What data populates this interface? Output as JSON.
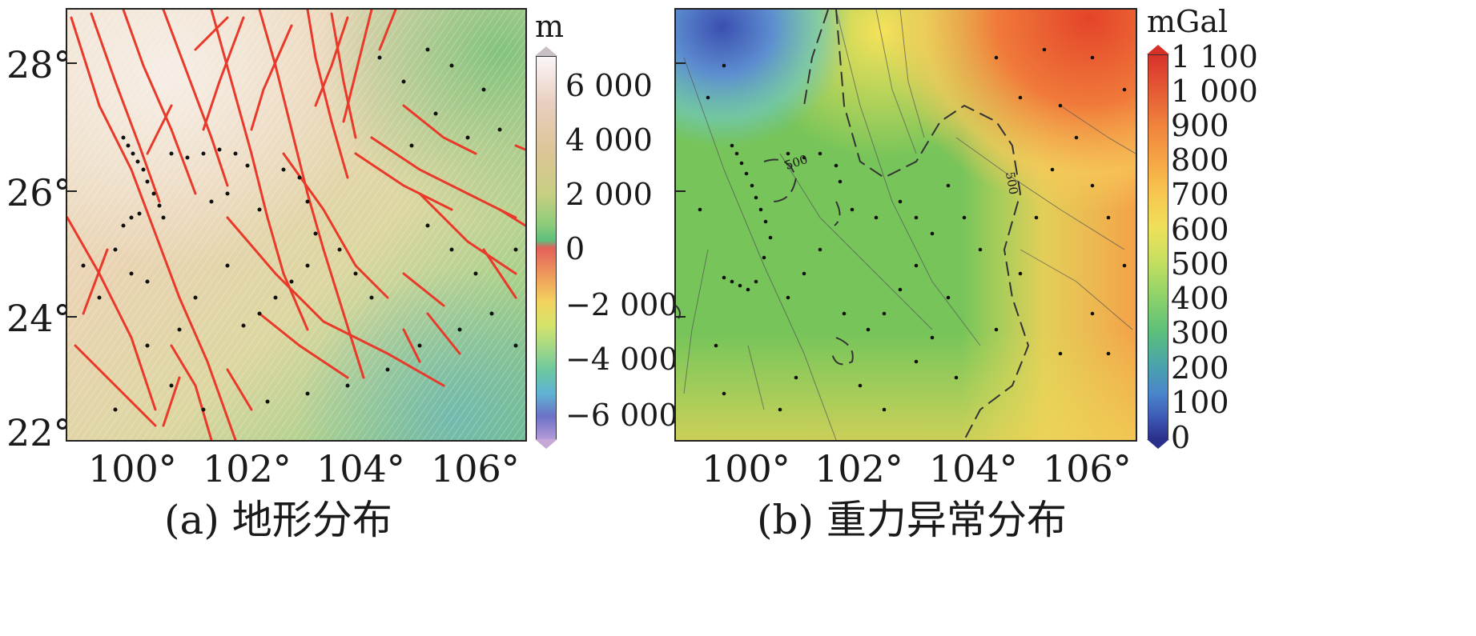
{
  "panel_a": {
    "caption": "(a) 地形分布",
    "y_ticks": [
      "28°",
      "26°",
      "24°",
      "22°"
    ],
    "x_ticks": [
      "100°",
      "102°",
      "104°",
      "106°"
    ],
    "colorbar": {
      "unit": "m",
      "labels": [
        "6 000",
        "4 000",
        "2 000",
        "0",
        "−2 000",
        "−4 000",
        "−6 000"
      ],
      "colors": [
        "#f4eef0",
        "#e6c8a8",
        "#c9c87a",
        "#7cc37a",
        "#e06a5a",
        "#f0b860",
        "#cce06a",
        "#7ccf9a",
        "#6bb8d6",
        "#6a6ac8",
        "#c8a0d8"
      ]
    },
    "colors": {
      "fault": "#e8392a",
      "station": "#111111",
      "terrain_low": "#7cc37a",
      "terrain_high": "#f2d9b8"
    }
  },
  "panel_b": {
    "caption": "(b) 重力异常分布",
    "x_ticks": [
      "100°",
      "102°",
      "104°",
      "106°"
    ],
    "contour_labels": [
      "500",
      "500"
    ],
    "colorbar": {
      "unit": "mGal",
      "labels": [
        "1 100",
        "1 000",
        "900",
        "800",
        "700",
        "600",
        "500",
        "400",
        "300",
        "200",
        "100",
        "0"
      ],
      "colors": [
        "#d73027",
        "#f46d43",
        "#fdae61",
        "#fee08b",
        "#d9ef8b",
        "#a6d96a",
        "#66bd63",
        "#5cc0a8",
        "#4fa3d0",
        "#3f6fc0",
        "#2b2f8f"
      ]
    },
    "colors": {
      "contour": "#333333",
      "fault": "#555555",
      "station": "#111111"
    }
  }
}
